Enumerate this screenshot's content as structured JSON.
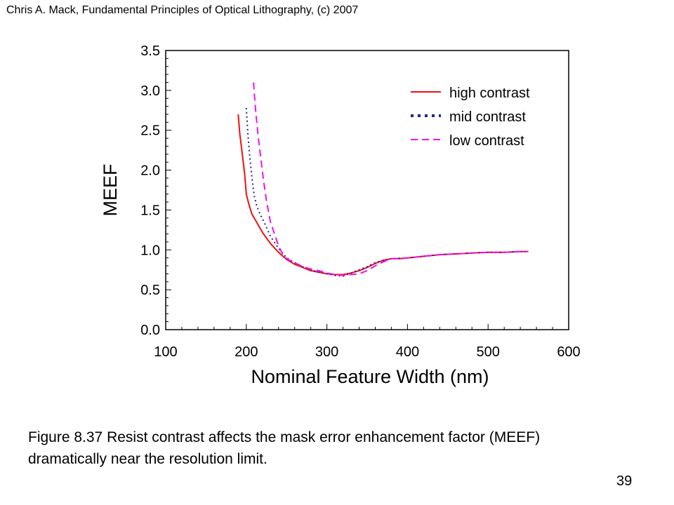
{
  "header": {
    "citation": "Chris A. Mack, Fundamental Principles of Optical Lithography, (c) 2007"
  },
  "caption": {
    "line1": "Figure 8.37 Resist contrast affects the mask error enhancement factor (MEEF)",
    "line2": "dramatically near the resolution limit."
  },
  "page_number": "39",
  "chart_data": {
    "type": "line",
    "title": "",
    "xlabel": "Nominal Feature Width (nm)",
    "ylabel": "MEEF",
    "xlim": [
      100,
      600
    ],
    "ylim": [
      0.0,
      3.5
    ],
    "xticks": [
      100,
      200,
      300,
      400,
      500,
      600
    ],
    "xtick_labels": [
      "100",
      "200",
      "300",
      "400",
      "500",
      "600"
    ],
    "yticks": [
      0.0,
      0.5,
      1.0,
      1.5,
      2.0,
      2.5,
      3.0,
      3.5
    ],
    "ytick_labels": [
      "0.0",
      "0.5",
      "1.0",
      "1.5",
      "2.0",
      "2.5",
      "3.0",
      "3.5"
    ],
    "grid": false,
    "legend_position": "top-right",
    "series": [
      {
        "name": "high contrast",
        "color": "#ee1111",
        "line_style": "solid",
        "x": [
          190,
          192,
          195,
          198,
          200,
          203,
          207,
          212,
          220,
          230,
          240,
          250,
          260,
          270,
          280,
          290,
          300,
          310,
          320,
          330,
          340,
          350,
          360,
          370,
          380,
          390,
          400,
          420,
          440,
          460,
          480,
          500,
          520,
          540,
          550
        ],
        "y": [
          2.7,
          2.45,
          2.2,
          1.95,
          1.7,
          1.58,
          1.45,
          1.36,
          1.22,
          1.08,
          0.97,
          0.88,
          0.82,
          0.78,
          0.74,
          0.72,
          0.7,
          0.69,
          0.69,
          0.71,
          0.74,
          0.78,
          0.83,
          0.87,
          0.89,
          0.89,
          0.9,
          0.92,
          0.94,
          0.95,
          0.96,
          0.97,
          0.97,
          0.98,
          0.98
        ]
      },
      {
        "name": "mid contrast",
        "color": "#22229a",
        "line_style": "dotted",
        "x": [
          200,
          202,
          204,
          206,
          208,
          210,
          213,
          217,
          222,
          230,
          240,
          250,
          260,
          270,
          280,
          290,
          300,
          310,
          320,
          330,
          340,
          350,
          360,
          370,
          380,
          400,
          420,
          440,
          460,
          480,
          500,
          520,
          540,
          550
        ],
        "y": [
          2.78,
          2.45,
          2.2,
          2.0,
          1.82,
          1.67,
          1.55,
          1.45,
          1.35,
          1.17,
          1.02,
          0.9,
          0.84,
          0.79,
          0.75,
          0.72,
          0.7,
          0.68,
          0.67,
          0.71,
          0.75,
          0.79,
          0.84,
          0.87,
          0.89,
          0.9,
          0.92,
          0.94,
          0.95,
          0.96,
          0.97,
          0.97,
          0.98,
          0.98
        ]
      },
      {
        "name": "low contrast",
        "color": "#ee11ee",
        "line_style": "dashed",
        "x": [
          209,
          210,
          212,
          215,
          218,
          221,
          225,
          230,
          235,
          240,
          245,
          250,
          260,
          270,
          280,
          290,
          300,
          310,
          320,
          330,
          340,
          350,
          360,
          370,
          380,
          390,
          400,
          420,
          440,
          460,
          480,
          500,
          520,
          540,
          550
        ],
        "y": [
          3.1,
          2.95,
          2.7,
          2.4,
          2.15,
          1.9,
          1.62,
          1.35,
          1.2,
          1.05,
          0.95,
          0.89,
          0.84,
          0.79,
          0.76,
          0.74,
          0.71,
          0.69,
          0.68,
          0.69,
          0.7,
          0.74,
          0.8,
          0.85,
          0.89,
          0.89,
          0.9,
          0.92,
          0.94,
          0.95,
          0.96,
          0.97,
          0.97,
          0.98,
          0.98
        ]
      }
    ]
  }
}
